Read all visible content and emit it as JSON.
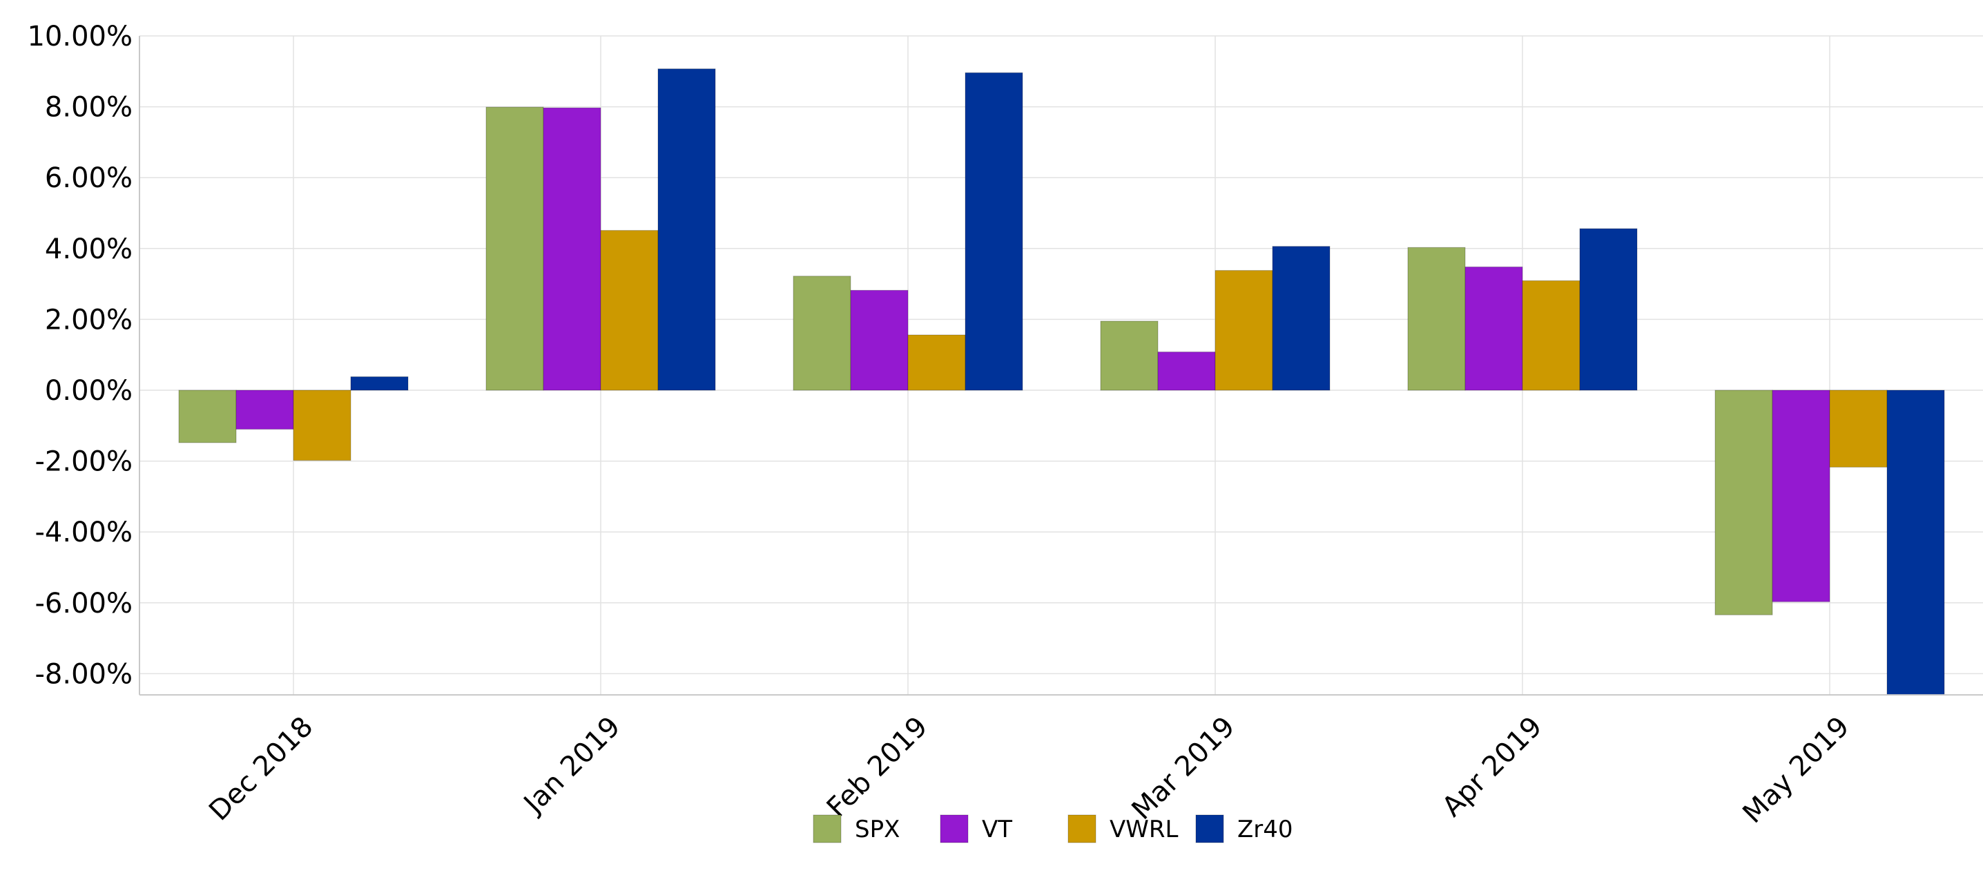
{
  "chart_data": {
    "type": "bar",
    "categories": [
      "Dec 2018",
      "Jan 2019",
      "Feb 2019",
      "Mar 2019",
      "Apr 2019",
      "May 2019"
    ],
    "series": [
      {
        "name": "SPX",
        "color": "#98b05c",
        "values": [
          -1.48,
          7.99,
          3.22,
          1.95,
          4.03,
          -6.34
        ]
      },
      {
        "name": "VT",
        "color": "#9419d0",
        "values": [
          -1.1,
          7.97,
          2.82,
          1.08,
          3.48,
          -5.97
        ]
      },
      {
        "name": "VWRL",
        "color": "#cc9900",
        "values": [
          -1.98,
          4.51,
          1.56,
          3.38,
          3.09,
          -2.17
        ]
      },
      {
        "name": "Zr40",
        "color": "#003399",
        "values": [
          0.38,
          9.07,
          8.96,
          4.06,
          4.56,
          -8.6
        ]
      }
    ],
    "y_ticks": [
      "10.00%",
      "8.00%",
      "6.00%",
      "4.00%",
      "2.00%",
      "0.00%",
      "-2.00%",
      "-4.00%",
      "-6.00%",
      "-8.00%"
    ],
    "y_tick_values": [
      10,
      8,
      6,
      4,
      2,
      0,
      -2,
      -4,
      -6,
      -8
    ],
    "ylim": [
      -8.6,
      10
    ],
    "grid": true,
    "legend_position": "bottom-center"
  }
}
